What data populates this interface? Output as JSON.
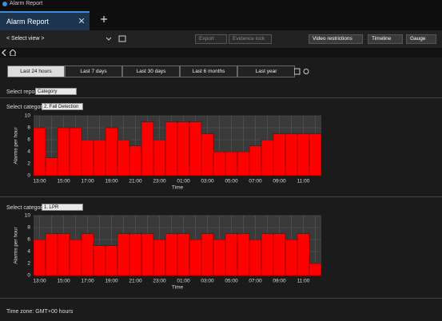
{
  "window": {
    "title": "Alarm Report"
  },
  "tab": {
    "label": "Alarm Report"
  },
  "toolbar": {
    "view": "< Select view >",
    "buttons": [
      "Export",
      "Evidence lock",
      "Video restrictions",
      "Timeline",
      "Gauge"
    ]
  },
  "ranges": [
    "Last 24 hours",
    "Last 7 days",
    "Last 30 days",
    "Last 6 months",
    "Last year"
  ],
  "report": {
    "label": "Select report:",
    "value": "Category"
  },
  "panels": [
    {
      "label": "Select category:",
      "value": "2. Fall Detection"
    },
    {
      "label": "Select category:",
      "value": "1. LPR"
    }
  ],
  "chart_data": [
    {
      "type": "bar",
      "ylabel": "Alarms per hour",
      "xlabel": "Time",
      "color": "#ff0000",
      "grid": true,
      "categories": [
        "13:00",
        null,
        "15:00",
        null,
        "17:00",
        null,
        "19:00",
        null,
        "21:00",
        null,
        "23:00",
        null,
        "01:00",
        null,
        "03:00",
        null,
        "05:00",
        null,
        "07:00",
        null,
        "09:00",
        null,
        "11:00",
        null
      ],
      "values": [
        8,
        3,
        8,
        8,
        6,
        6,
        8,
        6,
        5,
        9,
        6,
        9,
        9,
        9,
        7,
        4,
        4,
        4,
        5,
        6,
        7,
        7,
        7,
        7
      ],
      "ylim": [
        0,
        10
      ],
      "yticks": [
        0,
        2,
        4,
        6,
        8,
        10
      ]
    },
    {
      "type": "bar",
      "ylabel": "Alarms per hour",
      "xlabel": "Time",
      "color": "#ff0000",
      "grid": true,
      "categories": [
        "13:00",
        null,
        "15:00",
        null,
        "17:00",
        null,
        "19:00",
        null,
        "21:00",
        null,
        "23:00",
        null,
        "01:00",
        null,
        "03:00",
        null,
        "05:00",
        null,
        "07:00",
        null,
        "09:00",
        null,
        "11:00",
        null
      ],
      "values": [
        6,
        7,
        7,
        6,
        7,
        5,
        5,
        7,
        7,
        7,
        6,
        7,
        7,
        6,
        7,
        6,
        7,
        7,
        6,
        7,
        7,
        6,
        7,
        2
      ],
      "ylim": [
        0,
        10
      ],
      "yticks": [
        0,
        2,
        4,
        6,
        8,
        10
      ]
    }
  ],
  "footer": "Time zone: GMT+00 hours"
}
